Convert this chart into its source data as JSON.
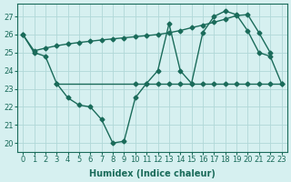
{
  "xlabel": "Humidex (Indice chaleur)",
  "x_values": [
    0,
    1,
    2,
    3,
    4,
    5,
    6,
    7,
    8,
    9,
    10,
    11,
    12,
    13,
    14,
    15,
    16,
    17,
    18,
    19,
    20,
    21,
    22,
    23
  ],
  "line1_x": [
    0,
    1,
    2,
    3,
    4,
    5,
    6,
    7,
    8,
    9,
    10,
    11,
    12,
    13,
    14,
    15,
    16,
    17,
    18,
    19,
    20,
    21,
    22,
    23
  ],
  "line1_y": [
    26.0,
    25.0,
    24.8,
    23.3,
    22.5,
    22.1,
    22.0,
    21.3,
    20.0,
    20.1,
    22.5,
    23.3,
    24.0,
    26.6,
    24.0,
    23.3,
    26.1,
    27.0,
    27.3,
    27.1,
    26.2,
    25.0,
    24.8,
    23.3
  ],
  "line2_x": [
    3,
    10,
    11,
    12,
    13,
    14,
    15,
    16,
    17,
    18,
    19,
    20,
    21,
    22,
    23
  ],
  "line2_y": [
    23.3,
    23.3,
    23.3,
    23.3,
    23.3,
    23.3,
    23.3,
    23.3,
    23.3,
    23.3,
    23.3,
    23.3,
    23.3,
    23.3,
    23.3
  ],
  "line3_x": [
    0,
    1,
    2,
    3,
    4,
    5,
    6,
    7,
    8,
    9,
    10,
    11,
    12,
    13,
    14,
    15,
    16,
    17,
    18,
    19,
    20,
    21,
    22
  ],
  "line3_y": [
    26.0,
    25.1,
    25.25,
    25.38,
    25.48,
    25.56,
    25.63,
    25.7,
    25.76,
    25.82,
    25.88,
    25.94,
    26.0,
    26.1,
    26.22,
    26.38,
    26.52,
    26.68,
    26.85,
    27.05,
    27.1,
    26.1,
    25.0
  ],
  "color": "#1a6b5a",
  "bg_color": "#d6f0f0",
  "grid_color": "#b0d8d8",
  "yticks": [
    20,
    21,
    22,
    23,
    24,
    25,
    26,
    27
  ],
  "marker": "D",
  "markersize": 2.5,
  "linewidth": 1.0,
  "label_fontsize": 7,
  "tick_fontsize": 6
}
